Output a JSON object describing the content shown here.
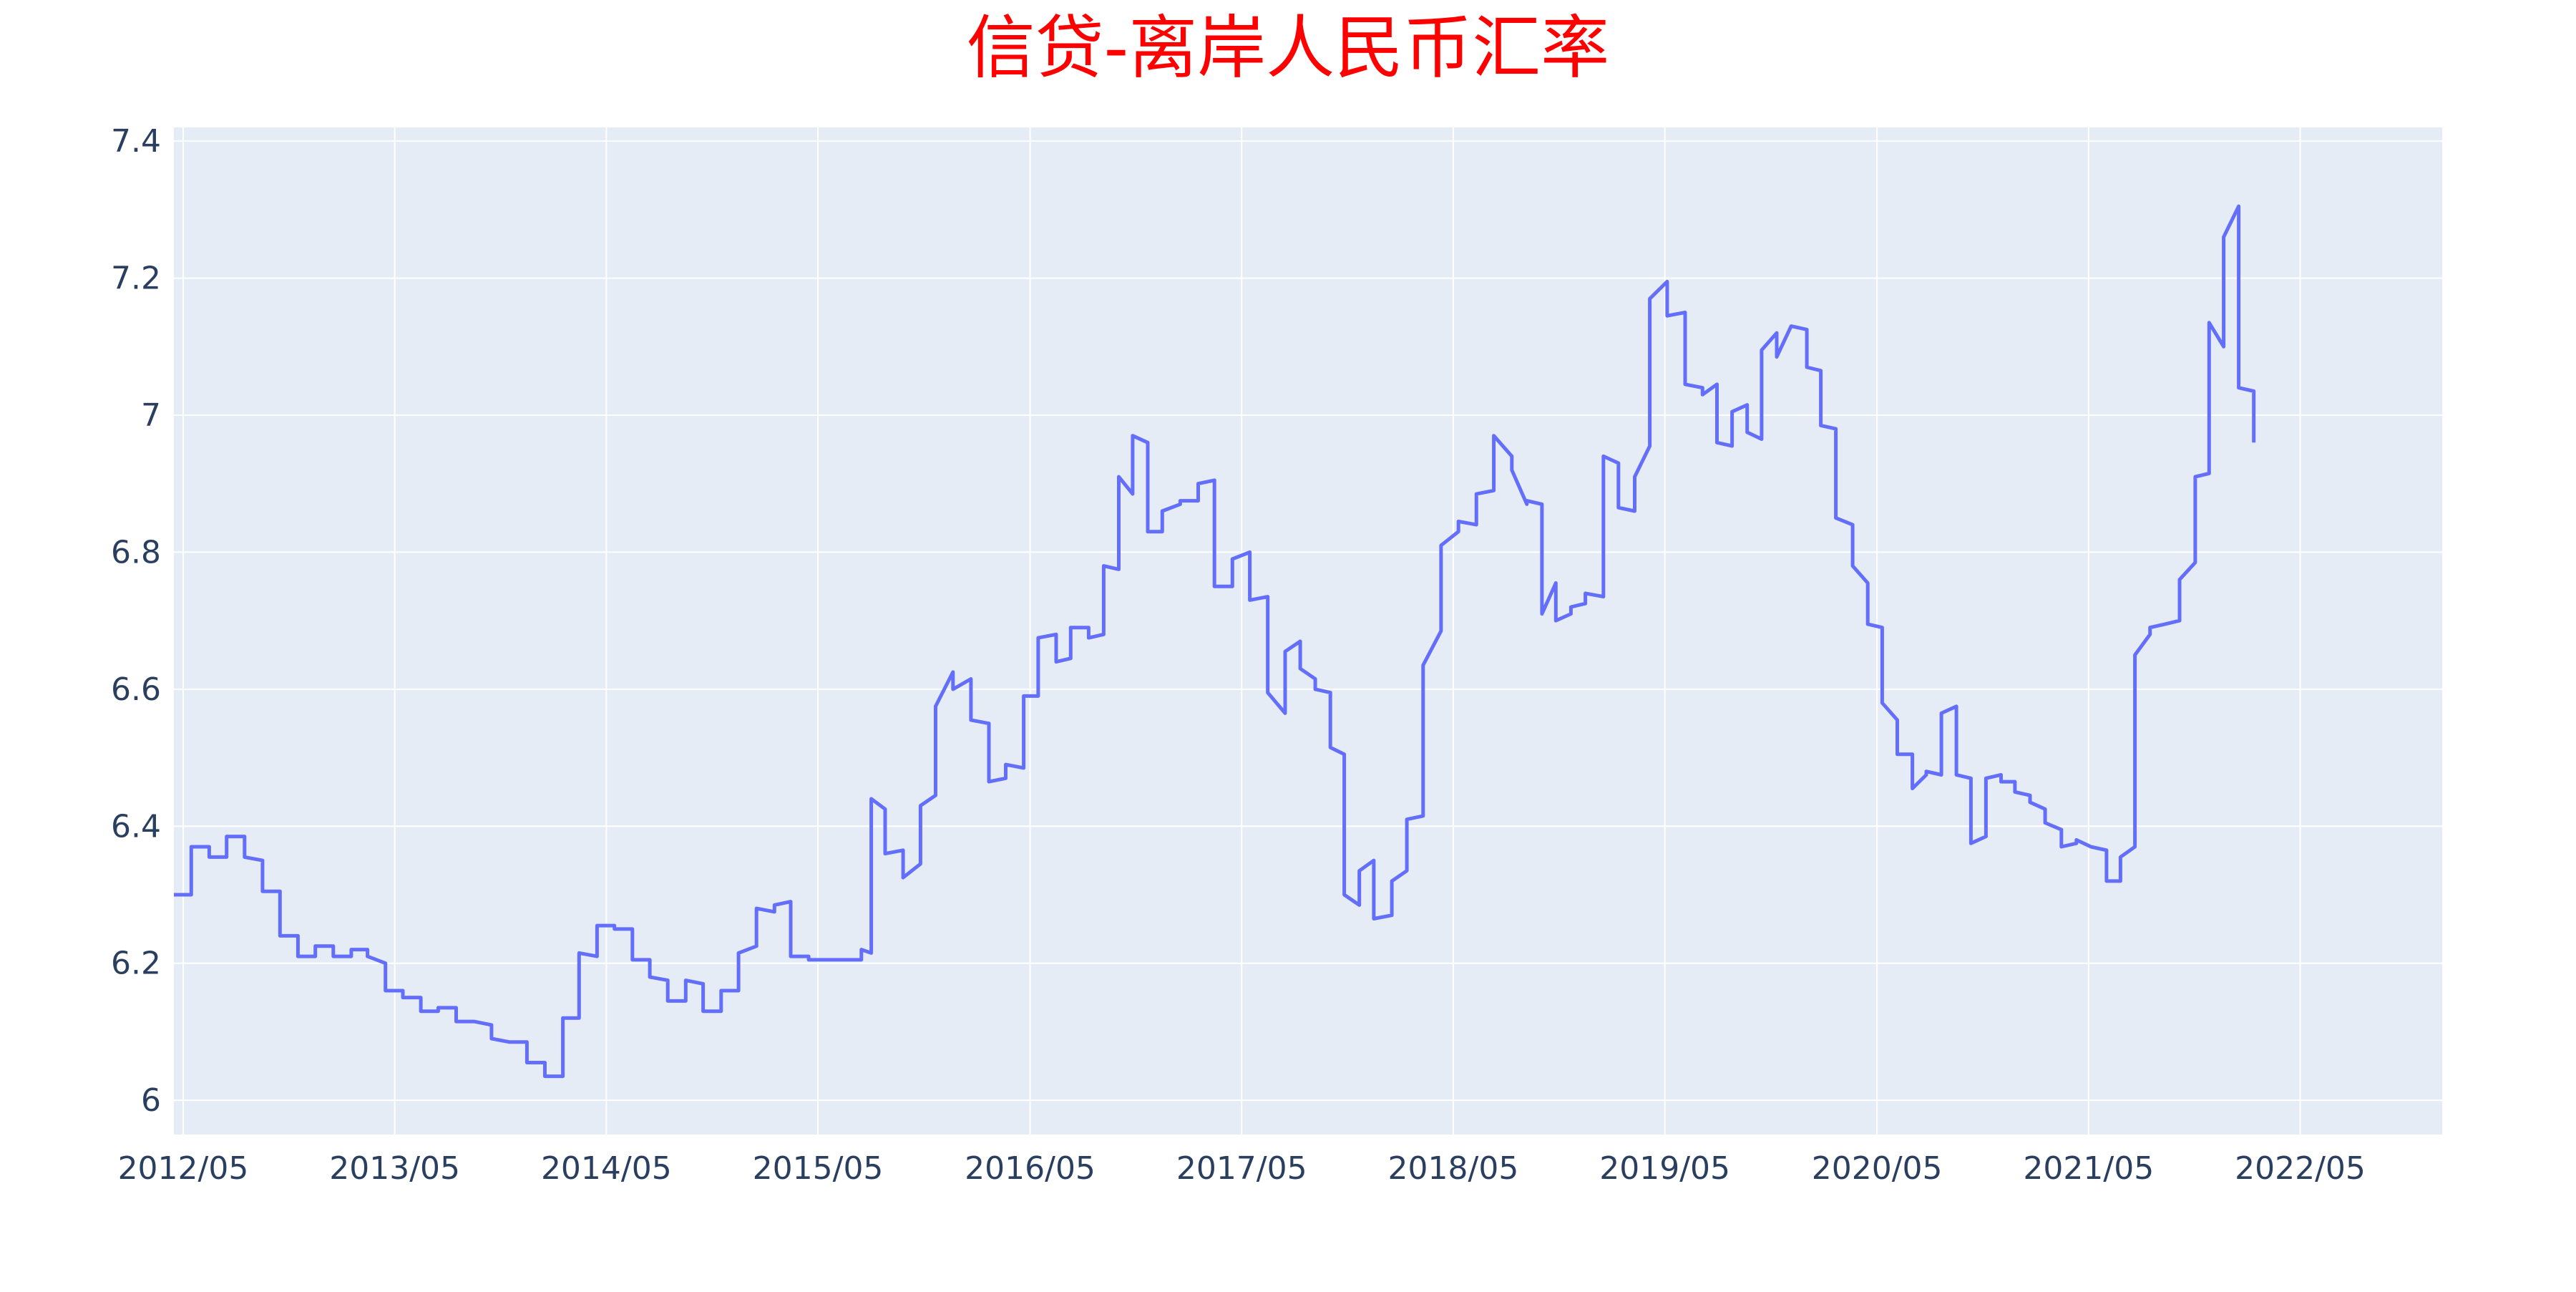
{
  "chart_data": {
    "type": "line",
    "title": "信贷-离岸人民币汇率",
    "xlabel": "",
    "ylabel": "",
    "ylim": [
      5.95,
      7.42
    ],
    "xlim": [
      "2012-04-15",
      "2023-01-01"
    ],
    "grid": true,
    "line_color": "#636efa",
    "plot_bg": "#e5ecf6",
    "title_color": "#ff0000",
    "y_ticks": [
      {
        "value": 6.0,
        "label": "6"
      },
      {
        "value": 6.2,
        "label": "6.2"
      },
      {
        "value": 6.4,
        "label": "6.4"
      },
      {
        "value": 6.6,
        "label": "6.6"
      },
      {
        "value": 6.8,
        "label": "6.8"
      },
      {
        "value": 7.0,
        "label": "7"
      },
      {
        "value": 7.2,
        "label": "7.2"
      },
      {
        "value": 7.4,
        "label": "7.4"
      }
    ],
    "x_ticks": [
      {
        "date": "2012-05-01",
        "label": "2012/05"
      },
      {
        "date": "2013-05-01",
        "label": "2013/05"
      },
      {
        "date": "2014-05-01",
        "label": "2014/05"
      },
      {
        "date": "2015-05-01",
        "label": "2015/05"
      },
      {
        "date": "2016-05-01",
        "label": "2016/05"
      },
      {
        "date": "2017-05-01",
        "label": "2017/05"
      },
      {
        "date": "2018-05-01",
        "label": "2018/05"
      },
      {
        "date": "2019-05-01",
        "label": "2019/05"
      },
      {
        "date": "2020-05-01",
        "label": "2020/05"
      },
      {
        "date": "2021-05-01",
        "label": "2021/05"
      },
      {
        "date": "2022-05-01",
        "label": "2022/05"
      }
    ],
    "series": [
      {
        "points": [
          [
            "2012-04-15",
            6.3
          ],
          [
            "2012-05-15",
            6.3
          ],
          [
            "2012-05-15",
            6.37
          ],
          [
            "2012-06-15",
            6.37
          ],
          [
            "2012-06-15",
            6.355
          ],
          [
            "2012-07-15",
            6.355
          ],
          [
            "2012-07-15",
            6.385
          ],
          [
            "2012-08-15",
            6.385
          ],
          [
            "2012-08-15",
            6.355
          ],
          [
            "2012-09-15",
            6.35
          ],
          [
            "2012-09-15",
            6.305
          ],
          [
            "2012-10-15",
            6.305
          ],
          [
            "2012-10-15",
            6.24
          ],
          [
            "2012-11-15",
            6.24
          ],
          [
            "2012-11-15",
            6.21
          ],
          [
            "2012-12-15",
            6.21
          ],
          [
            "2012-12-15",
            6.225
          ],
          [
            "2013-01-15",
            6.225
          ],
          [
            "2013-01-15",
            6.21
          ],
          [
            "2013-02-15",
            6.21
          ],
          [
            "2013-02-15",
            6.22
          ],
          [
            "2013-03-15",
            6.22
          ],
          [
            "2013-03-15",
            6.21
          ],
          [
            "2013-04-15",
            6.2
          ],
          [
            "2013-04-15",
            6.16
          ],
          [
            "2013-05-15",
            6.16
          ],
          [
            "2013-05-15",
            6.15
          ],
          [
            "2013-06-15",
            6.15
          ],
          [
            "2013-06-15",
            6.13
          ],
          [
            "2013-07-15",
            6.13
          ],
          [
            "2013-07-15",
            6.135
          ],
          [
            "2013-08-15",
            6.135
          ],
          [
            "2013-08-15",
            6.115
          ],
          [
            "2013-09-15",
            6.115
          ],
          [
            "2013-09-15",
            6.115
          ],
          [
            "2013-10-15",
            6.11
          ],
          [
            "2013-10-15",
            6.09
          ],
          [
            "2013-11-15",
            6.085
          ],
          [
            "2013-11-15",
            6.085
          ],
          [
            "2013-12-15",
            6.085
          ],
          [
            "2013-12-15",
            6.055
          ],
          [
            "2014-01-15",
            6.055
          ],
          [
            "2014-01-15",
            6.035
          ],
          [
            "2014-02-15",
            6.035
          ],
          [
            "2014-02-15",
            6.12
          ],
          [
            "2014-03-15",
            6.12
          ],
          [
            "2014-03-15",
            6.215
          ],
          [
            "2014-04-15",
            6.21
          ],
          [
            "2014-04-15",
            6.255
          ],
          [
            "2014-05-15",
            6.255
          ],
          [
            "2014-05-15",
            6.25
          ],
          [
            "2014-06-15",
            6.25
          ],
          [
            "2014-06-15",
            6.205
          ],
          [
            "2014-07-15",
            6.205
          ],
          [
            "2014-07-15",
            6.18
          ],
          [
            "2014-08-15",
            6.175
          ],
          [
            "2014-08-15",
            6.145
          ],
          [
            "2014-09-15",
            6.145
          ],
          [
            "2014-09-15",
            6.175
          ],
          [
            "2014-10-15",
            6.17
          ],
          [
            "2014-10-15",
            6.13
          ],
          [
            "2014-11-15",
            6.13
          ],
          [
            "2014-11-15",
            6.16
          ],
          [
            "2014-12-15",
            6.16
          ],
          [
            "2014-12-15",
            6.215
          ],
          [
            "2015-01-15",
            6.225
          ],
          [
            "2015-01-15",
            6.28
          ],
          [
            "2015-02-15",
            6.275
          ],
          [
            "2015-02-15",
            6.285
          ],
          [
            "2015-03-15",
            6.29
          ],
          [
            "2015-03-15",
            6.21
          ],
          [
            "2015-04-15",
            6.21
          ],
          [
            "2015-04-15",
            6.205
          ],
          [
            "2015-05-15",
            6.205
          ],
          [
            "2015-05-15",
            6.205
          ],
          [
            "2015-06-15",
            6.205
          ],
          [
            "2015-06-15",
            6.205
          ],
          [
            "2015-07-15",
            6.205
          ],
          [
            "2015-07-15",
            6.22
          ],
          [
            "2015-08-01",
            6.215
          ],
          [
            "2015-08-01",
            6.44
          ],
          [
            "2015-08-25",
            6.425
          ],
          [
            "2015-08-25",
            6.36
          ],
          [
            "2015-09-25",
            6.365
          ],
          [
            "2015-09-25",
            6.325
          ],
          [
            "2015-10-25",
            6.345
          ],
          [
            "2015-10-25",
            6.43
          ],
          [
            "2015-11-20",
            6.445
          ],
          [
            "2015-11-20",
            6.575
          ],
          [
            "2015-12-20",
            6.625
          ],
          [
            "2015-12-20",
            6.6
          ],
          [
            "2016-01-20",
            6.615
          ],
          [
            "2016-01-20",
            6.555
          ],
          [
            "2016-02-20",
            6.55
          ],
          [
            "2016-02-20",
            6.465
          ],
          [
            "2016-03-20",
            6.47
          ],
          [
            "2016-03-20",
            6.49
          ],
          [
            "2016-04-20",
            6.485
          ],
          [
            "2016-04-20",
            6.59
          ],
          [
            "2016-05-15",
            6.59
          ],
          [
            "2016-05-15",
            6.675
          ],
          [
            "2016-06-15",
            6.68
          ],
          [
            "2016-06-15",
            6.64
          ],
          [
            "2016-07-10",
            6.645
          ],
          [
            "2016-07-10",
            6.69
          ],
          [
            "2016-08-10",
            6.69
          ],
          [
            "2016-08-10",
            6.675
          ],
          [
            "2016-09-05",
            6.68
          ],
          [
            "2016-09-05",
            6.78
          ],
          [
            "2016-10-01",
            6.775
          ],
          [
            "2016-10-01",
            6.91
          ],
          [
            "2016-10-25",
            6.885
          ],
          [
            "2016-10-25",
            6.97
          ],
          [
            "2016-11-20",
            6.96
          ],
          [
            "2016-11-20",
            6.83
          ],
          [
            "2016-12-15",
            6.83
          ],
          [
            "2016-12-15",
            6.86
          ],
          [
            "2017-01-15",
            6.87
          ],
          [
            "2017-01-15",
            6.875
          ],
          [
            "2017-02-15",
            6.875
          ],
          [
            "2017-02-15",
            6.9
          ],
          [
            "2017-03-15",
            6.905
          ],
          [
            "2017-03-15",
            6.75
          ],
          [
            "2017-04-15",
            6.75
          ],
          [
            "2017-04-15",
            6.79
          ],
          [
            "2017-05-15",
            6.8
          ],
          [
            "2017-05-15",
            6.73
          ],
          [
            "2017-06-15",
            6.735
          ],
          [
            "2017-06-15",
            6.595
          ],
          [
            "2017-07-15",
            6.565
          ],
          [
            "2017-07-15",
            6.655
          ],
          [
            "2017-08-10",
            6.67
          ],
          [
            "2017-08-10",
            6.63
          ],
          [
            "2017-09-05",
            6.615
          ],
          [
            "2017-09-05",
            6.6
          ],
          [
            "2017-10-01",
            6.595
          ],
          [
            "2017-10-01",
            6.515
          ],
          [
            "2017-10-25",
            6.505
          ],
          [
            "2017-10-25",
            6.3
          ],
          [
            "2017-11-20",
            6.285
          ],
          [
            "2017-11-20",
            6.335
          ],
          [
            "2017-12-15",
            6.35
          ],
          [
            "2017-12-15",
            6.265
          ],
          [
            "2018-01-15",
            6.27
          ],
          [
            "2018-01-15",
            6.32
          ],
          [
            "2018-02-10",
            6.335
          ],
          [
            "2018-02-10",
            6.41
          ],
          [
            "2018-03-10",
            6.415
          ],
          [
            "2018-03-10",
            6.635
          ],
          [
            "2018-04-10",
            6.685
          ],
          [
            "2018-04-10",
            6.81
          ],
          [
            "2018-05-10",
            6.83
          ],
          [
            "2018-05-10",
            6.845
          ],
          [
            "2018-06-10",
            6.84
          ],
          [
            "2018-06-10",
            6.885
          ],
          [
            "2018-07-10",
            6.89
          ],
          [
            "2018-07-10",
            6.97
          ],
          [
            "2018-08-10",
            6.94
          ],
          [
            "2018-08-10",
            6.92
          ],
          [
            "2018-09-05",
            6.87
          ],
          [
            "2018-09-05",
            6.875
          ],
          [
            "2018-10-01",
            6.87
          ],
          [
            "2018-10-01",
            6.71
          ],
          [
            "2018-10-25",
            6.755
          ],
          [
            "2018-10-25",
            6.7
          ],
          [
            "2018-11-20",
            6.71
          ],
          [
            "2018-11-20",
            6.72
          ],
          [
            "2018-12-15",
            6.725
          ],
          [
            "2018-12-15",
            6.74
          ],
          [
            "2019-01-15",
            6.735
          ],
          [
            "2019-01-15",
            6.94
          ],
          [
            "2019-02-10",
            6.93
          ],
          [
            "2019-02-10",
            6.865
          ],
          [
            "2019-03-10",
            6.86
          ],
          [
            "2019-03-10",
            6.91
          ],
          [
            "2019-04-05",
            6.955
          ],
          [
            "2019-04-05",
            7.17
          ],
          [
            "2019-05-05",
            7.195
          ],
          [
            "2019-05-05",
            7.145
          ],
          [
            "2019-06-05",
            7.15
          ],
          [
            "2019-06-05",
            7.045
          ],
          [
            "2019-07-05",
            7.04
          ],
          [
            "2019-07-05",
            7.03
          ],
          [
            "2019-07-30",
            7.045
          ],
          [
            "2019-07-30",
            6.96
          ],
          [
            "2019-08-25",
            6.955
          ],
          [
            "2019-08-25",
            7.005
          ],
          [
            "2019-09-20",
            7.015
          ],
          [
            "2019-09-20",
            6.975
          ],
          [
            "2019-10-15",
            6.965
          ],
          [
            "2019-10-15",
            7.095
          ],
          [
            "2019-11-10",
            7.12
          ],
          [
            "2019-11-10",
            7.085
          ],
          [
            "2019-12-05",
            7.13
          ],
          [
            "2019-12-05",
            7.13
          ],
          [
            "2020-01-01",
            7.125
          ],
          [
            "2020-01-01",
            7.07
          ],
          [
            "2020-01-25",
            7.065
          ],
          [
            "2020-01-25",
            6.985
          ],
          [
            "2020-02-20",
            6.98
          ],
          [
            "2020-02-20",
            6.85
          ],
          [
            "2020-03-20",
            6.84
          ],
          [
            "2020-03-20",
            6.78
          ],
          [
            "2020-04-15",
            6.755
          ],
          [
            "2020-04-15",
            6.695
          ],
          [
            "2020-05-10",
            6.69
          ],
          [
            "2020-05-10",
            6.58
          ],
          [
            "2020-06-05",
            6.555
          ],
          [
            "2020-06-05",
            6.505
          ],
          [
            "2020-07-01",
            6.505
          ],
          [
            "2020-07-01",
            6.455
          ],
          [
            "2020-07-25",
            6.475
          ],
          [
            "2020-07-25",
            6.48
          ],
          [
            "2020-08-20",
            6.475
          ],
          [
            "2020-08-20",
            6.565
          ],
          [
            "2020-09-15",
            6.575
          ],
          [
            "2020-09-15",
            6.475
          ],
          [
            "2020-10-10",
            6.47
          ],
          [
            "2020-10-10",
            6.375
          ],
          [
            "2020-11-05",
            6.385
          ],
          [
            "2020-11-05",
            6.47
          ],
          [
            "2020-12-01",
            6.475
          ],
          [
            "2020-12-01",
            6.465
          ],
          [
            "2020-12-25",
            6.465
          ],
          [
            "2020-12-25",
            6.45
          ],
          [
            "2021-01-20",
            6.445
          ],
          [
            "2021-01-20",
            6.435
          ],
          [
            "2021-02-15",
            6.425
          ],
          [
            "2021-02-15",
            6.405
          ],
          [
            "2021-03-15",
            6.395
          ],
          [
            "2021-03-15",
            6.37
          ],
          [
            "2021-04-10",
            6.375
          ],
          [
            "2021-04-10",
            6.38
          ],
          [
            "2021-05-05",
            6.37
          ],
          [
            "2021-05-05",
            6.37
          ],
          [
            "2021-06-01",
            6.365
          ],
          [
            "2021-06-01",
            6.32
          ],
          [
            "2021-06-25",
            6.32
          ],
          [
            "2021-06-25",
            6.355
          ],
          [
            "2021-07-20",
            6.37
          ],
          [
            "2021-07-20",
            6.65
          ],
          [
            "2021-08-15",
            6.68
          ],
          [
            "2021-08-15",
            6.69
          ],
          [
            "2021-09-10",
            6.695
          ],
          [
            "2021-09-10",
            6.695
          ],
          [
            "2021-10-05",
            6.7
          ],
          [
            "2021-10-05",
            6.76
          ],
          [
            "2021-11-01",
            6.785
          ],
          [
            "2021-11-01",
            6.91
          ],
          [
            "2021-11-25",
            6.915
          ],
          [
            "2021-11-25",
            7.135
          ],
          [
            "2021-12-20",
            7.1
          ],
          [
            "2021-12-20",
            7.26
          ],
          [
            "2022-01-15",
            7.305
          ],
          [
            "2022-01-15",
            7.04
          ],
          [
            "2022-02-10",
            7.035
          ],
          [
            "2022-02-10",
            6.96
          ]
        ]
      }
    ]
  }
}
